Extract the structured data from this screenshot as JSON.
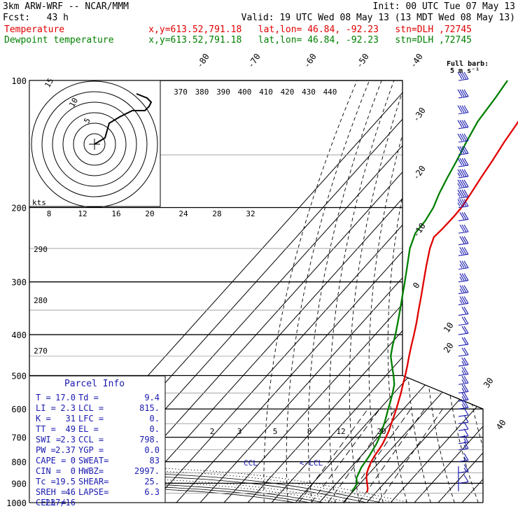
{
  "header": {
    "model": "3km ARW-WRF -- NCAR/MMM",
    "init": "Init: 00 UTC Tue 07 May 13",
    "fcst": "Fcst:   43 h",
    "valid": "Valid: 19 UTC Wed 08 May 13 (13 MDT Wed 08 May 13)",
    "temp_label": "Temperature",
    "dew_label": "Dewpoint temperature",
    "location_line": "x,y=613.52,791.18   lat,lon= 46.84, -92.23   stn=DLH ,72745",
    "temp_color": "#e00000",
    "dew_color": "#008000"
  },
  "wind_legend": {
    "line1": "Full barb:",
    "line2": "5 m s⁻¹"
  },
  "parcel_info": {
    "title": "Parcel Info",
    "rows": [
      [
        "T  =",
        "17.0",
        "Td =",
        "9.4"
      ],
      [
        "LI =",
        "2.3",
        "LCL =",
        "815."
      ],
      [
        "K  =",
        "31",
        "LFC =",
        "0."
      ],
      [
        "TT =",
        "49",
        "EL =",
        "0."
      ],
      [
        "SWI =",
        "2.3",
        "CCL =",
        "798."
      ],
      [
        "PW =",
        "2.37",
        "YGP =",
        "0.0"
      ],
      [
        "CAPE =",
        "0",
        "SWEAT=",
        "83"
      ],
      [
        "CIN =",
        "0",
        "HWBZ=",
        "2997."
      ],
      [
        "Tc =",
        "19.5",
        "SHEAR=",
        "25."
      ],
      [
        "SREH =",
        "46",
        "LAPSE=",
        "6.3"
      ],
      [
        "CELL =",
        "237/16",
        "",
        ""
      ]
    ]
  },
  "annotations": {
    "ccl": "CCL",
    "lcl": "LCL",
    "kts": "kts"
  },
  "chart_data": {
    "type": "line",
    "title": "",
    "xlabel": "",
    "ylabel": "",
    "pressure_levels": [
      100,
      200,
      300,
      400,
      500,
      600,
      700,
      800,
      900,
      1000
    ],
    "temp_ticks": [
      -80,
      -70,
      -60,
      -50,
      -40,
      -30,
      -20,
      -10,
      0,
      10,
      20,
      30,
      40
    ],
    "theta_labels": [
      370,
      380,
      390,
      400,
      410,
      420,
      430,
      440
    ],
    "theta_left_labels": [
      290,
      280,
      270
    ],
    "mixing_ratio_labels": [
      2,
      3,
      5,
      8,
      12,
      20
    ],
    "hodograph": {
      "speed_ticks": [
        8,
        12,
        16,
        20,
        24,
        28,
        32
      ],
      "ring_labels": [
        5,
        10,
        15
      ],
      "trace_kts": [
        [
          0,
          0
        ],
        [
          5,
          3
        ],
        [
          7,
          10
        ],
        [
          12,
          13
        ],
        [
          18,
          16
        ],
        [
          24,
          16
        ],
        [
          26,
          18
        ],
        [
          27,
          20
        ],
        [
          25,
          22
        ],
        [
          20,
          24
        ]
      ]
    },
    "series": [
      {
        "name": "Temperature",
        "color": "#e00000",
        "points": [
          [
            946,
            16.3
          ],
          [
            925,
            15.0
          ],
          [
            900,
            12.8
          ],
          [
            875,
            10.6
          ],
          [
            850,
            8.8
          ],
          [
            825,
            7.5
          ],
          [
            800,
            6.4
          ],
          [
            775,
            5.6
          ],
          [
            750,
            5.1
          ],
          [
            725,
            4.4
          ],
          [
            700,
            3.3
          ],
          [
            675,
            2.1
          ],
          [
            650,
            0.4
          ],
          [
            625,
            -1.2
          ],
          [
            600,
            -3.0
          ],
          [
            575,
            -5.0
          ],
          [
            550,
            -7.1
          ],
          [
            525,
            -9.5
          ],
          [
            500,
            -11.9
          ],
          [
            475,
            -14.6
          ],
          [
            450,
            -17.6
          ],
          [
            425,
            -20.6
          ],
          [
            400,
            -23.7
          ],
          [
            375,
            -27.1
          ],
          [
            350,
            -31.0
          ],
          [
            325,
            -35.1
          ],
          [
            300,
            -39.6
          ],
          [
            275,
            -44.5
          ],
          [
            250,
            -49.6
          ],
          [
            235,
            -52.2
          ],
          [
            225,
            -51.8
          ],
          [
            210,
            -51.6
          ],
          [
            200,
            -51.8
          ],
          [
            185,
            -53.2
          ],
          [
            170,
            -54.9
          ],
          [
            155,
            -56.5
          ],
          [
            140,
            -58.6
          ],
          [
            128,
            -60.0
          ],
          [
            115,
            -62.0
          ],
          [
            100,
            -63.2
          ]
        ]
      },
      {
        "name": "Dewpoint temperature",
        "color": "#008000",
        "points": [
          [
            940,
            9.4
          ],
          [
            925,
            9.3
          ],
          [
            900,
            8.6
          ],
          [
            875,
            6.4
          ],
          [
            850,
            5.4
          ],
          [
            825,
            4.4
          ],
          [
            800,
            3.9
          ],
          [
            775,
            3.4
          ],
          [
            750,
            2.6
          ],
          [
            725,
            1.8
          ],
          [
            700,
            0.6
          ],
          [
            675,
            -1.0
          ],
          [
            650,
            -2.5
          ],
          [
            625,
            -4.4
          ],
          [
            600,
            -6.4
          ],
          [
            575,
            -8.4
          ],
          [
            550,
            -10.6
          ],
          [
            525,
            -13.1
          ],
          [
            500,
            -16.8
          ],
          [
            475,
            -21.0
          ],
          [
            450,
            -25.3
          ],
          [
            425,
            -28.5
          ],
          [
            400,
            -31.5
          ],
          [
            375,
            -35.0
          ],
          [
            350,
            -38.8
          ],
          [
            325,
            -43.0
          ],
          [
            300,
            -47.5
          ],
          [
            275,
            -52.5
          ],
          [
            250,
            -58.0
          ],
          [
            230,
            -61.5
          ],
          [
            215,
            -62.0
          ],
          [
            200,
            -63.6
          ],
          [
            185,
            -66.5
          ],
          [
            170,
            -69.0
          ],
          [
            155,
            -71.5
          ],
          [
            140,
            -74.5
          ],
          [
            125,
            -77.5
          ],
          [
            110,
            -79.0
          ],
          [
            100,
            -80.5
          ]
        ]
      }
    ],
    "wind_barbs_kts": [
      [
        100,
        40
      ],
      [
        110,
        40
      ],
      [
        120,
        40
      ],
      [
        130,
        40
      ],
      [
        140,
        40
      ],
      [
        150,
        40
      ],
      [
        160,
        40
      ],
      [
        170,
        35
      ],
      [
        180,
        35
      ],
      [
        190,
        35
      ],
      [
        200,
        35
      ],
      [
        215,
        30
      ],
      [
        230,
        30
      ],
      [
        245,
        30
      ],
      [
        260,
        25
      ],
      [
        280,
        25
      ],
      [
        300,
        25
      ],
      [
        320,
        25
      ],
      [
        340,
        25
      ],
      [
        360,
        20
      ],
      [
        380,
        20
      ],
      [
        400,
        20
      ],
      [
        425,
        20
      ],
      [
        450,
        20
      ],
      [
        475,
        15
      ],
      [
        500,
        15
      ],
      [
        525,
        15
      ],
      [
        550,
        15
      ],
      [
        575,
        15
      ],
      [
        600,
        15
      ],
      [
        625,
        10
      ],
      [
        650,
        10
      ],
      [
        675,
        10
      ],
      [
        700,
        10
      ],
      [
        725,
        5
      ],
      [
        750,
        5
      ],
      [
        800,
        5
      ],
      [
        850,
        5
      ],
      [
        900,
        10
      ]
    ]
  }
}
